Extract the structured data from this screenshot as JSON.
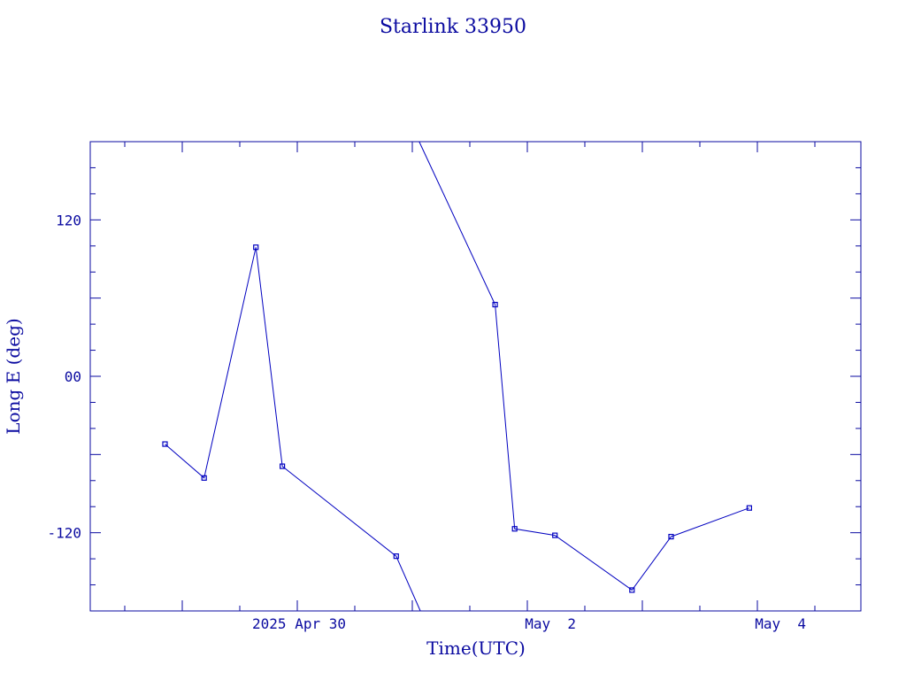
{
  "chart_data": {
    "type": "line",
    "title": "Starlink 33950",
    "xlabel": "Time(UTC)",
    "ylabel": "Long E (deg)",
    "x_ticks": [
      {
        "t": 1.0,
        "label": "2025 Apr 30"
      },
      {
        "t": 3.0,
        "label": "May  2"
      },
      {
        "t": 5.0,
        "label": "May  4"
      }
    ],
    "y_ticks": [
      {
        "v": 120,
        "label": "120"
      },
      {
        "v": 0,
        "label": "00"
      },
      {
        "v": -120,
        "label": "-120"
      }
    ],
    "xlim": [
      -0.8,
      5.9
    ],
    "ylim": [
      -180,
      180
    ],
    "series": [
      {
        "name": "",
        "color": "#0000c0",
        "segments": [
          [
            {
              "t": -0.15,
              "v": -52
            },
            {
              "t": 0.19,
              "v": -78
            },
            {
              "t": 0.64,
              "v": 99
            },
            {
              "t": 0.87,
              "v": -69
            },
            {
              "t": 1.86,
              "v": -138
            },
            {
              "t": 2.07,
              "v": -180
            }
          ],
          [
            {
              "t": 2.06,
              "v": 180
            },
            {
              "t": 2.72,
              "v": 55
            },
            {
              "t": 2.89,
              "v": -117
            },
            {
              "t": 3.24,
              "v": -122
            },
            {
              "t": 3.91,
              "v": -164
            },
            {
              "t": 4.25,
              "v": -123
            },
            {
              "t": 4.93,
              "v": -101
            }
          ]
        ],
        "markers": [
          {
            "t": -0.15,
            "v": -52
          },
          {
            "t": 0.19,
            "v": -78
          },
          {
            "t": 0.64,
            "v": 99
          },
          {
            "t": 0.87,
            "v": -69
          },
          {
            "t": 1.86,
            "v": -138
          },
          {
            "t": 2.72,
            "v": 55
          },
          {
            "t": 2.89,
            "v": -117
          },
          {
            "t": 3.24,
            "v": -122
          },
          {
            "t": 3.91,
            "v": -164
          },
          {
            "t": 4.25,
            "v": -123
          },
          {
            "t": 4.93,
            "v": -101
          }
        ]
      }
    ]
  }
}
